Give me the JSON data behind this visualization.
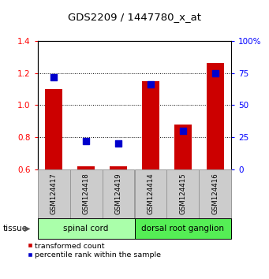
{
  "title": "GDS2209 / 1447780_x_at",
  "samples": [
    "GSM124417",
    "GSM124418",
    "GSM124419",
    "GSM124414",
    "GSM124415",
    "GSM124416"
  ],
  "red_values": [
    1.1,
    0.62,
    0.62,
    1.15,
    0.88,
    1.26
  ],
  "blue_values_pct": [
    72,
    22,
    20,
    66,
    30,
    75
  ],
  "ylim_left": [
    0.6,
    1.4
  ],
  "ylim_right": [
    0,
    100
  ],
  "yticks_left": [
    0.6,
    0.8,
    1.0,
    1.2,
    1.4
  ],
  "yticks_right": [
    0,
    25,
    50,
    75,
    100
  ],
  "ytick_labels_right": [
    "0",
    "25",
    "50",
    "75",
    "100%"
  ],
  "groups": [
    {
      "label": "spinal cord",
      "samples": [
        0,
        1,
        2
      ],
      "color": "#aaffaa"
    },
    {
      "label": "dorsal root ganglion",
      "samples": [
        3,
        4,
        5
      ],
      "color": "#55ee55"
    }
  ],
  "tissue_label": "tissue",
  "bar_color": "#cc0000",
  "dot_color": "#0000cc",
  "bar_bottom": 0.6,
  "bar_width": 0.55,
  "dot_size": 28,
  "legend_red_label": "transformed count",
  "legend_blue_label": "percentile rank within the sample",
  "bg_sample_color": "#cccccc",
  "bg_sample_edge": "#999999"
}
